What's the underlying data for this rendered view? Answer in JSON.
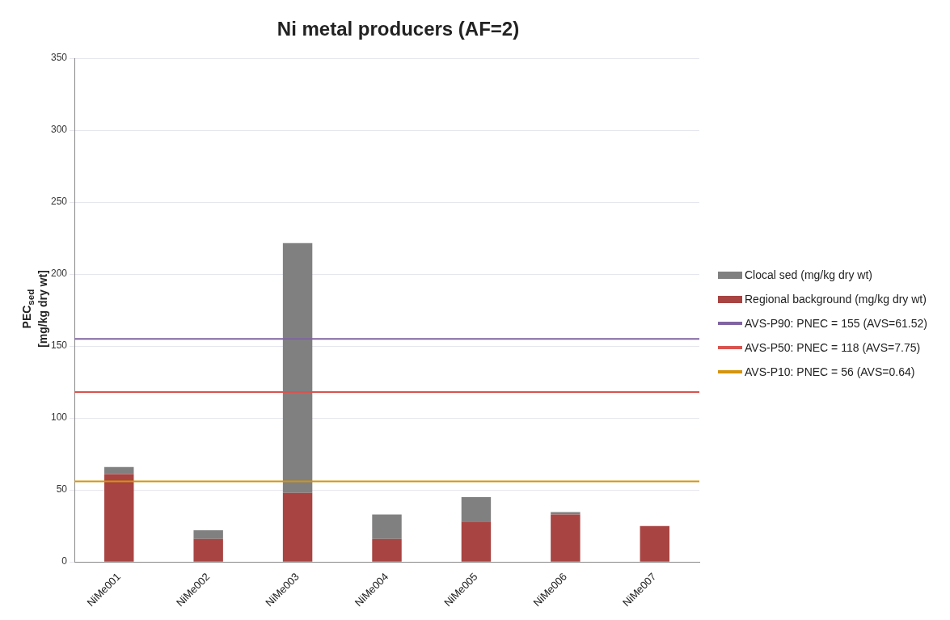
{
  "chart_data": {
    "type": "bar",
    "title": "Ni metal producers (AF=2)",
    "ylabel": "PEC$_{sed}$\n[mg/kg dry wt]",
    "categories": [
      "NiMe001",
      "NiMe002",
      "NiMe003",
      "NiMe004",
      "NiMe005",
      "NiMe006",
      "NiMe007"
    ],
    "stacked": true,
    "series": [
      {
        "name": "Regional background (mg/kg dry wt)",
        "color": "#a84442",
        "values": [
          61,
          16,
          48,
          16,
          28,
          33,
          25
        ]
      },
      {
        "name": "Clocal sed (mg/kg dry wt)",
        "color": "#808080",
        "values": [
          5,
          6,
          173.5,
          17,
          17,
          1.6,
          0
        ]
      }
    ],
    "ref_lines": [
      {
        "axis": "y",
        "value": 155,
        "label": "AVS-P90: PNEC = 155 (AVS=61.52)",
        "color": "#8064a2"
      },
      {
        "axis": "y",
        "value": 118,
        "label": "AVS-P50: PNEC = 118 (AVS=7.75)",
        "color": "#d9534f"
      },
      {
        "axis": "y",
        "value": 56,
        "label": "AVS-P10: PNEC = 56 (AVS=0.64)",
        "color": "#d4940c"
      }
    ],
    "ylim": [
      0,
      350
    ],
    "yticks": [
      0,
      50,
      100,
      150,
      200,
      250,
      300,
      350
    ],
    "grid": "y",
    "legend": "right"
  }
}
